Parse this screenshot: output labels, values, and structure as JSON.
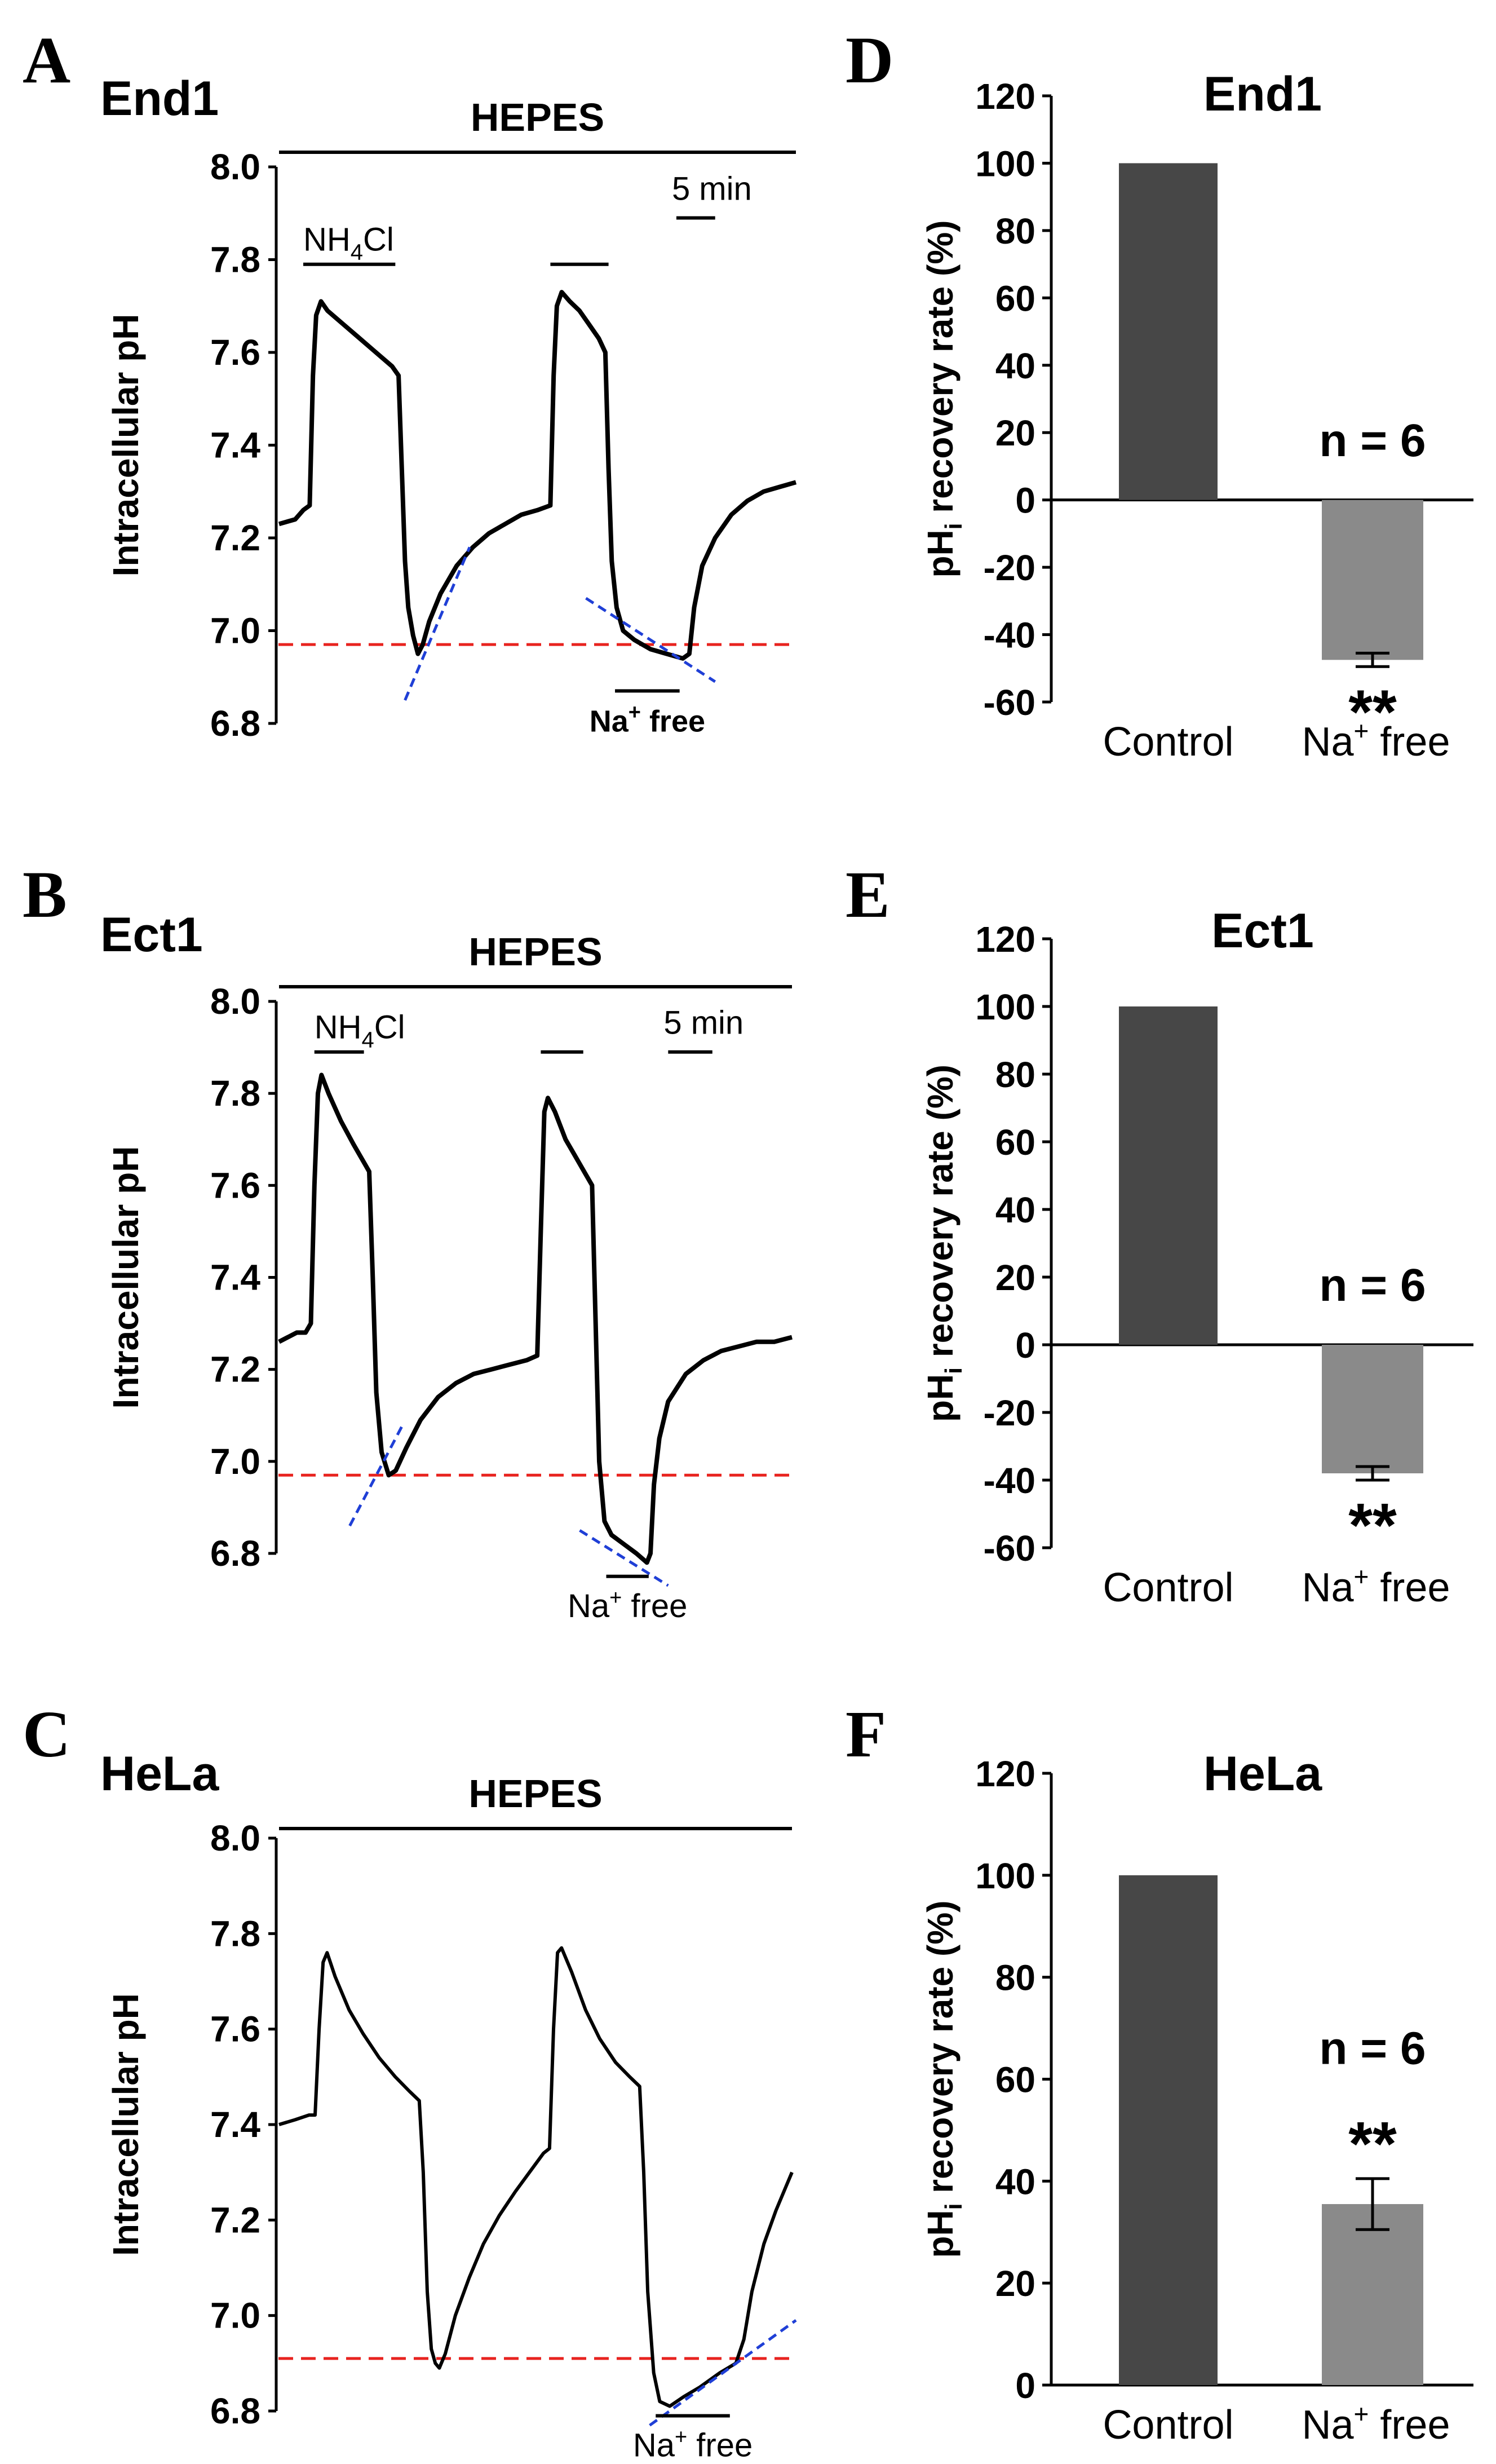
{
  "panels_trace": [
    {
      "letter": "A",
      "title": "End1",
      "top_label": "HEPES",
      "ylabel": "Intracellular pH",
      "yticks": [
        "8.0",
        "7.8",
        "7.6",
        "7.4",
        "7.2",
        "7.0",
        "6.8"
      ],
      "ylim": [
        6.8,
        8.0
      ],
      "nh4cl_label": "NH",
      "nh4cl_sub": "4",
      "nh4cl_tail": "Cl",
      "scale_label": "5 min",
      "na_label": "Na",
      "na_sup": "+",
      "na_tail": " free",
      "na_bold": true,
      "ref_ph": 6.97,
      "trace": [
        [
          0,
          7.23
        ],
        [
          1,
          7.24
        ],
        [
          1.5,
          7.26
        ],
        [
          1.9,
          7.27
        ],
        [
          2.1,
          7.55
        ],
        [
          2.3,
          7.68
        ],
        [
          2.6,
          7.71
        ],
        [
          3,
          7.69
        ],
        [
          4,
          7.66
        ],
        [
          5,
          7.63
        ],
        [
          6,
          7.6
        ],
        [
          7,
          7.57
        ],
        [
          7.4,
          7.55
        ],
        [
          7.6,
          7.35
        ],
        [
          7.8,
          7.15
        ],
        [
          8.0,
          7.05
        ],
        [
          8.3,
          6.99
        ],
        [
          8.6,
          6.95
        ],
        [
          8.9,
          6.97
        ],
        [
          9.3,
          7.02
        ],
        [
          10,
          7.08
        ],
        [
          11,
          7.14
        ],
        [
          12,
          7.18
        ],
        [
          13,
          7.21
        ],
        [
          14,
          7.23
        ],
        [
          15,
          7.25
        ],
        [
          16,
          7.26
        ],
        [
          16.8,
          7.27
        ],
        [
          17,
          7.55
        ],
        [
          17.2,
          7.7
        ],
        [
          17.5,
          7.73
        ],
        [
          18,
          7.71
        ],
        [
          18.6,
          7.69
        ],
        [
          19.2,
          7.66
        ],
        [
          19.8,
          7.63
        ],
        [
          20.2,
          7.6
        ],
        [
          20.4,
          7.35
        ],
        [
          20.6,
          7.15
        ],
        [
          20.9,
          7.05
        ],
        [
          21.3,
          7.0
        ],
        [
          22,
          6.98
        ],
        [
          23,
          6.96
        ],
        [
          24,
          6.95
        ],
        [
          25,
          6.94
        ],
        [
          25.4,
          6.95
        ],
        [
          25.7,
          7.05
        ],
        [
          26.2,
          7.14
        ],
        [
          27,
          7.2
        ],
        [
          28,
          7.25
        ],
        [
          29,
          7.28
        ],
        [
          30,
          7.3
        ],
        [
          31,
          7.31
        ],
        [
          32,
          7.32
        ]
      ],
      "tangents": [
        [
          [
            7.8,
            6.85
          ],
          [
            11.8,
            7.18
          ]
        ],
        [
          [
            19.0,
            7.07
          ],
          [
            27.0,
            6.89
          ]
        ]
      ],
      "bars": {
        "nh4_1": [
          1.5,
          7.2
        ],
        "nh4_2": [
          16.8,
          20.4
        ],
        "na": [
          20.8,
          24.8
        ],
        "scale": [
          24.6,
          27.0
        ],
        "hepes": [
          0,
          32
        ]
      },
      "bar_levels": {
        "nh4": 7.79,
        "hepes": 8.04,
        "scale": 7.89,
        "na": 6.87
      }
    },
    {
      "letter": "B",
      "title": "Ect1",
      "top_label": "HEPES",
      "ylabel": "Intracellular pH",
      "yticks": [
        "8.0",
        "7.8",
        "7.6",
        "7.4",
        "7.2",
        "7.0",
        "6.8"
      ],
      "ylim": [
        6.8,
        8.0
      ],
      "nh4cl_label": "NH",
      "nh4cl_sub": "4",
      "nh4cl_tail": "Cl",
      "scale_label": "5 min",
      "na_label": "Na",
      "na_sup": "+",
      "na_tail": " free",
      "na_bold": false,
      "ref_ph": 6.97,
      "trace": [
        [
          0,
          7.26
        ],
        [
          1,
          7.28
        ],
        [
          1.5,
          7.28
        ],
        [
          1.8,
          7.3
        ],
        [
          2.0,
          7.6
        ],
        [
          2.2,
          7.8
        ],
        [
          2.4,
          7.84
        ],
        [
          2.8,
          7.8
        ],
        [
          3.5,
          7.74
        ],
        [
          4.2,
          7.69
        ],
        [
          4.8,
          7.65
        ],
        [
          5.1,
          7.63
        ],
        [
          5.3,
          7.4
        ],
        [
          5.5,
          7.15
        ],
        [
          5.8,
          7.02
        ],
        [
          6.2,
          6.97
        ],
        [
          6.6,
          6.98
        ],
        [
          7.2,
          7.03
        ],
        [
          8,
          7.09
        ],
        [
          9,
          7.14
        ],
        [
          10,
          7.17
        ],
        [
          11,
          7.19
        ],
        [
          12,
          7.2
        ],
        [
          13,
          7.21
        ],
        [
          14,
          7.22
        ],
        [
          14.6,
          7.23
        ],
        [
          14.8,
          7.5
        ],
        [
          15.0,
          7.76
        ],
        [
          15.2,
          7.79
        ],
        [
          15.6,
          7.76
        ],
        [
          16.2,
          7.7
        ],
        [
          16.8,
          7.66
        ],
        [
          17.4,
          7.62
        ],
        [
          17.7,
          7.6
        ],
        [
          17.9,
          7.3
        ],
        [
          18.1,
          7.0
        ],
        [
          18.4,
          6.87
        ],
        [
          18.8,
          6.84
        ],
        [
          19.5,
          6.82
        ],
        [
          20.2,
          6.8
        ],
        [
          20.8,
          6.78
        ],
        [
          21.0,
          6.8
        ],
        [
          21.2,
          6.95
        ],
        [
          21.5,
          7.05
        ],
        [
          22,
          7.13
        ],
        [
          23,
          7.19
        ],
        [
          24,
          7.22
        ],
        [
          25,
          7.24
        ],
        [
          26,
          7.25
        ],
        [
          27,
          7.26
        ],
        [
          28,
          7.26
        ],
        [
          29,
          7.27
        ]
      ],
      "tangents": [
        [
          [
            4.0,
            6.86
          ],
          [
            7.0,
            7.08
          ]
        ],
        [
          [
            17.0,
            6.85
          ],
          [
            22.0,
            6.73
          ]
        ]
      ],
      "bars": {
        "nh4_1": [
          2.0,
          4.8
        ],
        "nh4_2": [
          14.8,
          17.2
        ],
        "na": [
          18.5,
          20.9
        ],
        "scale": [
          22.0,
          24.5
        ],
        "hepes": [
          0,
          29
        ]
      },
      "bar_levels": {
        "nh4": 7.89,
        "hepes": 8.05,
        "scale": 7.89,
        "na": 6.75
      }
    },
    {
      "letter": "C",
      "title": "HeLa",
      "top_label": "HEPES",
      "ylabel": "Intracellular pH",
      "yticks": [
        "8.0",
        "7.8",
        "7.6",
        "7.4",
        "7.2",
        "7.0",
        "6.8"
      ],
      "ylim": [
        6.8,
        8.0
      ],
      "nh4cl_label": "",
      "nh4cl_sub": "",
      "nh4cl_tail": "",
      "scale_label": "",
      "na_label": "Na",
      "na_sup": "+",
      "na_tail": " free",
      "na_bold": false,
      "ref_ph": 6.91,
      "trace": [
        [
          0,
          7.4
        ],
        [
          0.8,
          7.41
        ],
        [
          1.5,
          7.42
        ],
        [
          1.8,
          7.42
        ],
        [
          2.0,
          7.6
        ],
        [
          2.2,
          7.74
        ],
        [
          2.4,
          7.76
        ],
        [
          2.8,
          7.71
        ],
        [
          3.5,
          7.64
        ],
        [
          4.2,
          7.59
        ],
        [
          5,
          7.54
        ],
        [
          5.8,
          7.5
        ],
        [
          6.5,
          7.47
        ],
        [
          7.0,
          7.45
        ],
        [
          7.2,
          7.3
        ],
        [
          7.4,
          7.05
        ],
        [
          7.6,
          6.93
        ],
        [
          7.8,
          6.9
        ],
        [
          8.0,
          6.89
        ],
        [
          8.3,
          6.92
        ],
        [
          8.8,
          7.0
        ],
        [
          9.5,
          7.08
        ],
        [
          10.2,
          7.15
        ],
        [
          11,
          7.21
        ],
        [
          11.8,
          7.26
        ],
        [
          12.5,
          7.3
        ],
        [
          13.2,
          7.34
        ],
        [
          13.5,
          7.35
        ],
        [
          13.7,
          7.6
        ],
        [
          13.9,
          7.76
        ],
        [
          14.1,
          7.77
        ],
        [
          14.6,
          7.72
        ],
        [
          15.3,
          7.64
        ],
        [
          16,
          7.58
        ],
        [
          16.8,
          7.53
        ],
        [
          17.5,
          7.5
        ],
        [
          18.0,
          7.48
        ],
        [
          18.2,
          7.3
        ],
        [
          18.4,
          7.05
        ],
        [
          18.7,
          6.88
        ],
        [
          19.0,
          6.82
        ],
        [
          19.5,
          6.81
        ],
        [
          20.2,
          6.83
        ],
        [
          21,
          6.85
        ],
        [
          22,
          6.88
        ],
        [
          22.8,
          6.9
        ],
        [
          23.2,
          6.95
        ],
        [
          23.6,
          7.05
        ],
        [
          24.2,
          7.15
        ],
        [
          24.8,
          7.22
        ],
        [
          25.3,
          7.27
        ],
        [
          25.6,
          7.3
        ]
      ],
      "tangents": [
        [
          [
            18.5,
            6.77
          ],
          [
            25.8,
            6.99
          ]
        ]
      ],
      "bars": {
        "nh4_1": [
          0,
          0
        ],
        "nh4_2": [
          0,
          0
        ],
        "na": [
          18.8,
          22.5
        ],
        "scale": [
          0,
          0
        ],
        "hepes": [
          0,
          25.6
        ]
      },
      "bar_levels": {
        "nh4": 7.9,
        "hepes": 8.05,
        "scale": 7.89,
        "na": 6.79
      }
    }
  ],
  "chart_data": [
    {
      "type": "bar",
      "letter": "D",
      "title": "End1",
      "ylabel": "pH",
      "ylabel_sub": "i",
      "ylabel_tail": " recovery rate (%)",
      "categories": [
        "Control",
        "Na"
      ],
      "category_sup": "+",
      "category_tail": " free",
      "values": [
        100,
        -47.5
      ],
      "errors": [
        0,
        2.0
      ],
      "ylim": [
        -60,
        120
      ],
      "yticks": [
        "120",
        "100",
        "80",
        "60",
        "40",
        "20",
        "0",
        "-20",
        "-40",
        "-60"
      ],
      "n_label": "n = 6",
      "significance": "**",
      "bar_colors": [
        "#474747",
        "#8a8a8a"
      ]
    },
    {
      "type": "bar",
      "letter": "E",
      "title": "Ect1",
      "ylabel": "pH",
      "ylabel_sub": "i",
      "ylabel_tail": " recovery rate (%)",
      "categories": [
        "Control",
        "Na"
      ],
      "category_sup": "+",
      "category_tail": " free",
      "values": [
        100,
        -38
      ],
      "errors": [
        0,
        2.0
      ],
      "ylim": [
        -60,
        120
      ],
      "yticks": [
        "120",
        "100",
        "80",
        "60",
        "40",
        "20",
        "0",
        "-20",
        "-40",
        "-60"
      ],
      "n_label": "n = 6",
      "significance": "**",
      "bar_colors": [
        "#474747",
        "#8a8a8a"
      ]
    },
    {
      "type": "bar",
      "letter": "F",
      "title": "HeLa",
      "ylabel": "pH",
      "ylabel_sub": "i",
      "ylabel_tail": " recovery rate (%)",
      "categories": [
        "Control",
        "Na"
      ],
      "category_sup": "+",
      "category_tail": " free",
      "values": [
        100,
        35.5
      ],
      "errors": [
        0,
        5.0
      ],
      "ylim": [
        0,
        120
      ],
      "yticks": [
        "120",
        "100",
        "80",
        "60",
        "40",
        "20",
        "0"
      ],
      "n_label": "n = 6",
      "significance": "**",
      "bar_colors": [
        "#474747",
        "#8a8a8a"
      ]
    }
  ],
  "colors": {
    "trace": "#000000",
    "reference": "#e8231f",
    "tangent": "#1f3fd6",
    "axis": "#000000"
  }
}
